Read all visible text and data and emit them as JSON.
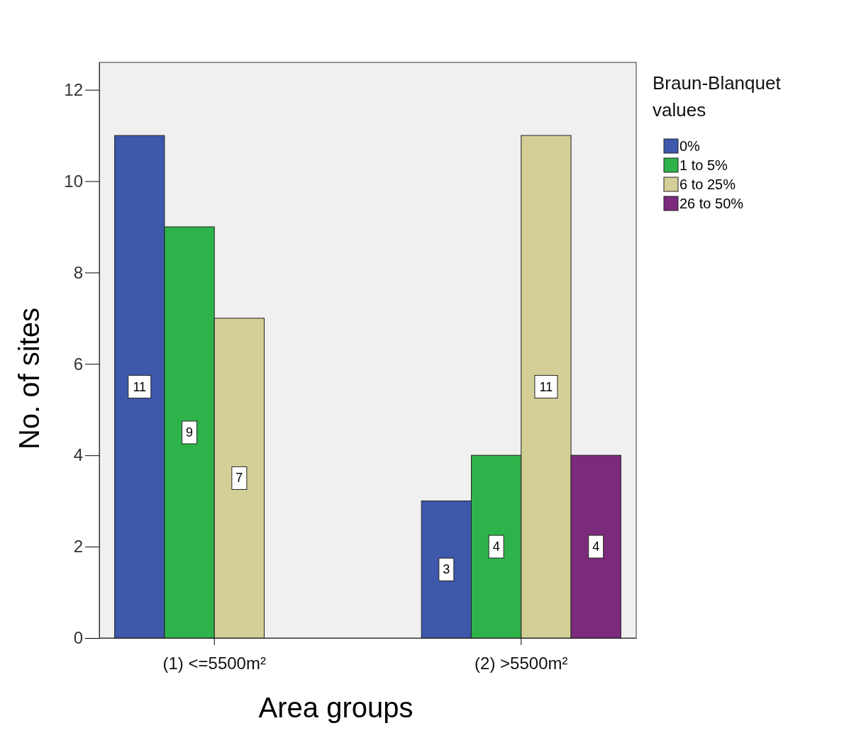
{
  "chart_data": {
    "type": "bar",
    "xlabel": "Area groups",
    "ylabel": "No. of sites",
    "legend_title": "Braun-Blanquet values",
    "categories": [
      "(1) <=5500m²",
      "(2) >5500m²"
    ],
    "series": [
      {
        "name": "0%",
        "color": "#3e58ac",
        "values": [
          11,
          3
        ]
      },
      {
        "name": "1 to 5%",
        "color": "#2eb34a",
        "values": [
          9,
          4
        ]
      },
      {
        "name": "6 to 25%",
        "color": "#d4cf97",
        "values": [
          7,
          11
        ]
      },
      {
        "name": "26 to 50%",
        "color": "#7c2a7c",
        "values": [
          null,
          4
        ]
      }
    ],
    "ylim": [
      0,
      12.6
    ],
    "yticks": [
      0,
      2,
      4,
      6,
      8,
      10,
      12
    ],
    "data_labels": true,
    "legend": "top right",
    "grid": false
  }
}
